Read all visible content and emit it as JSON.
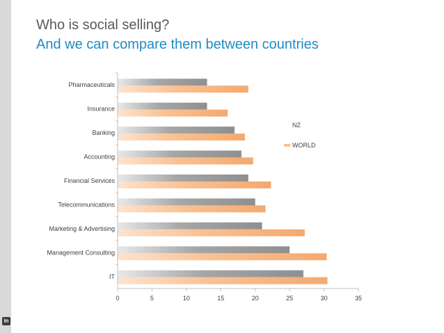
{
  "slide": {
    "title": "Who is social selling?",
    "subtitle": "And we can compare them between countries"
  },
  "colors": {
    "nz": "#a6a6a6",
    "world": "#fac090",
    "axis": "#bfbfbf"
  },
  "logo_icon": "linkedin-icon",
  "chart_data": {
    "type": "bar",
    "orientation": "horizontal",
    "title": "",
    "xlabel": "",
    "ylabel": "",
    "xlim": [
      0,
      35
    ],
    "x_ticks": [
      0,
      5,
      10,
      15,
      20,
      25,
      30,
      35
    ],
    "x_tick_labels": [
      "0",
      "5",
      "10",
      "15",
      "20",
      "25",
      "30",
      "35"
    ],
    "categories": [
      "Pharmaceuticals",
      "Insurance",
      "Banking",
      "Accounting",
      "Financial Services",
      "Telecommunications",
      "Marketing & Advertising",
      "Management Consulting",
      "IT"
    ],
    "series": [
      {
        "name": "NZ",
        "values": [
          13,
          13,
          17,
          18,
          19,
          20,
          21,
          25,
          27
        ]
      },
      {
        "name": "WORLD",
        "values": [
          19,
          16,
          18.5,
          19.7,
          22.3,
          21.5,
          27.2,
          30.4,
          30.5
        ]
      }
    ],
    "legend": "right",
    "grid": false
  }
}
